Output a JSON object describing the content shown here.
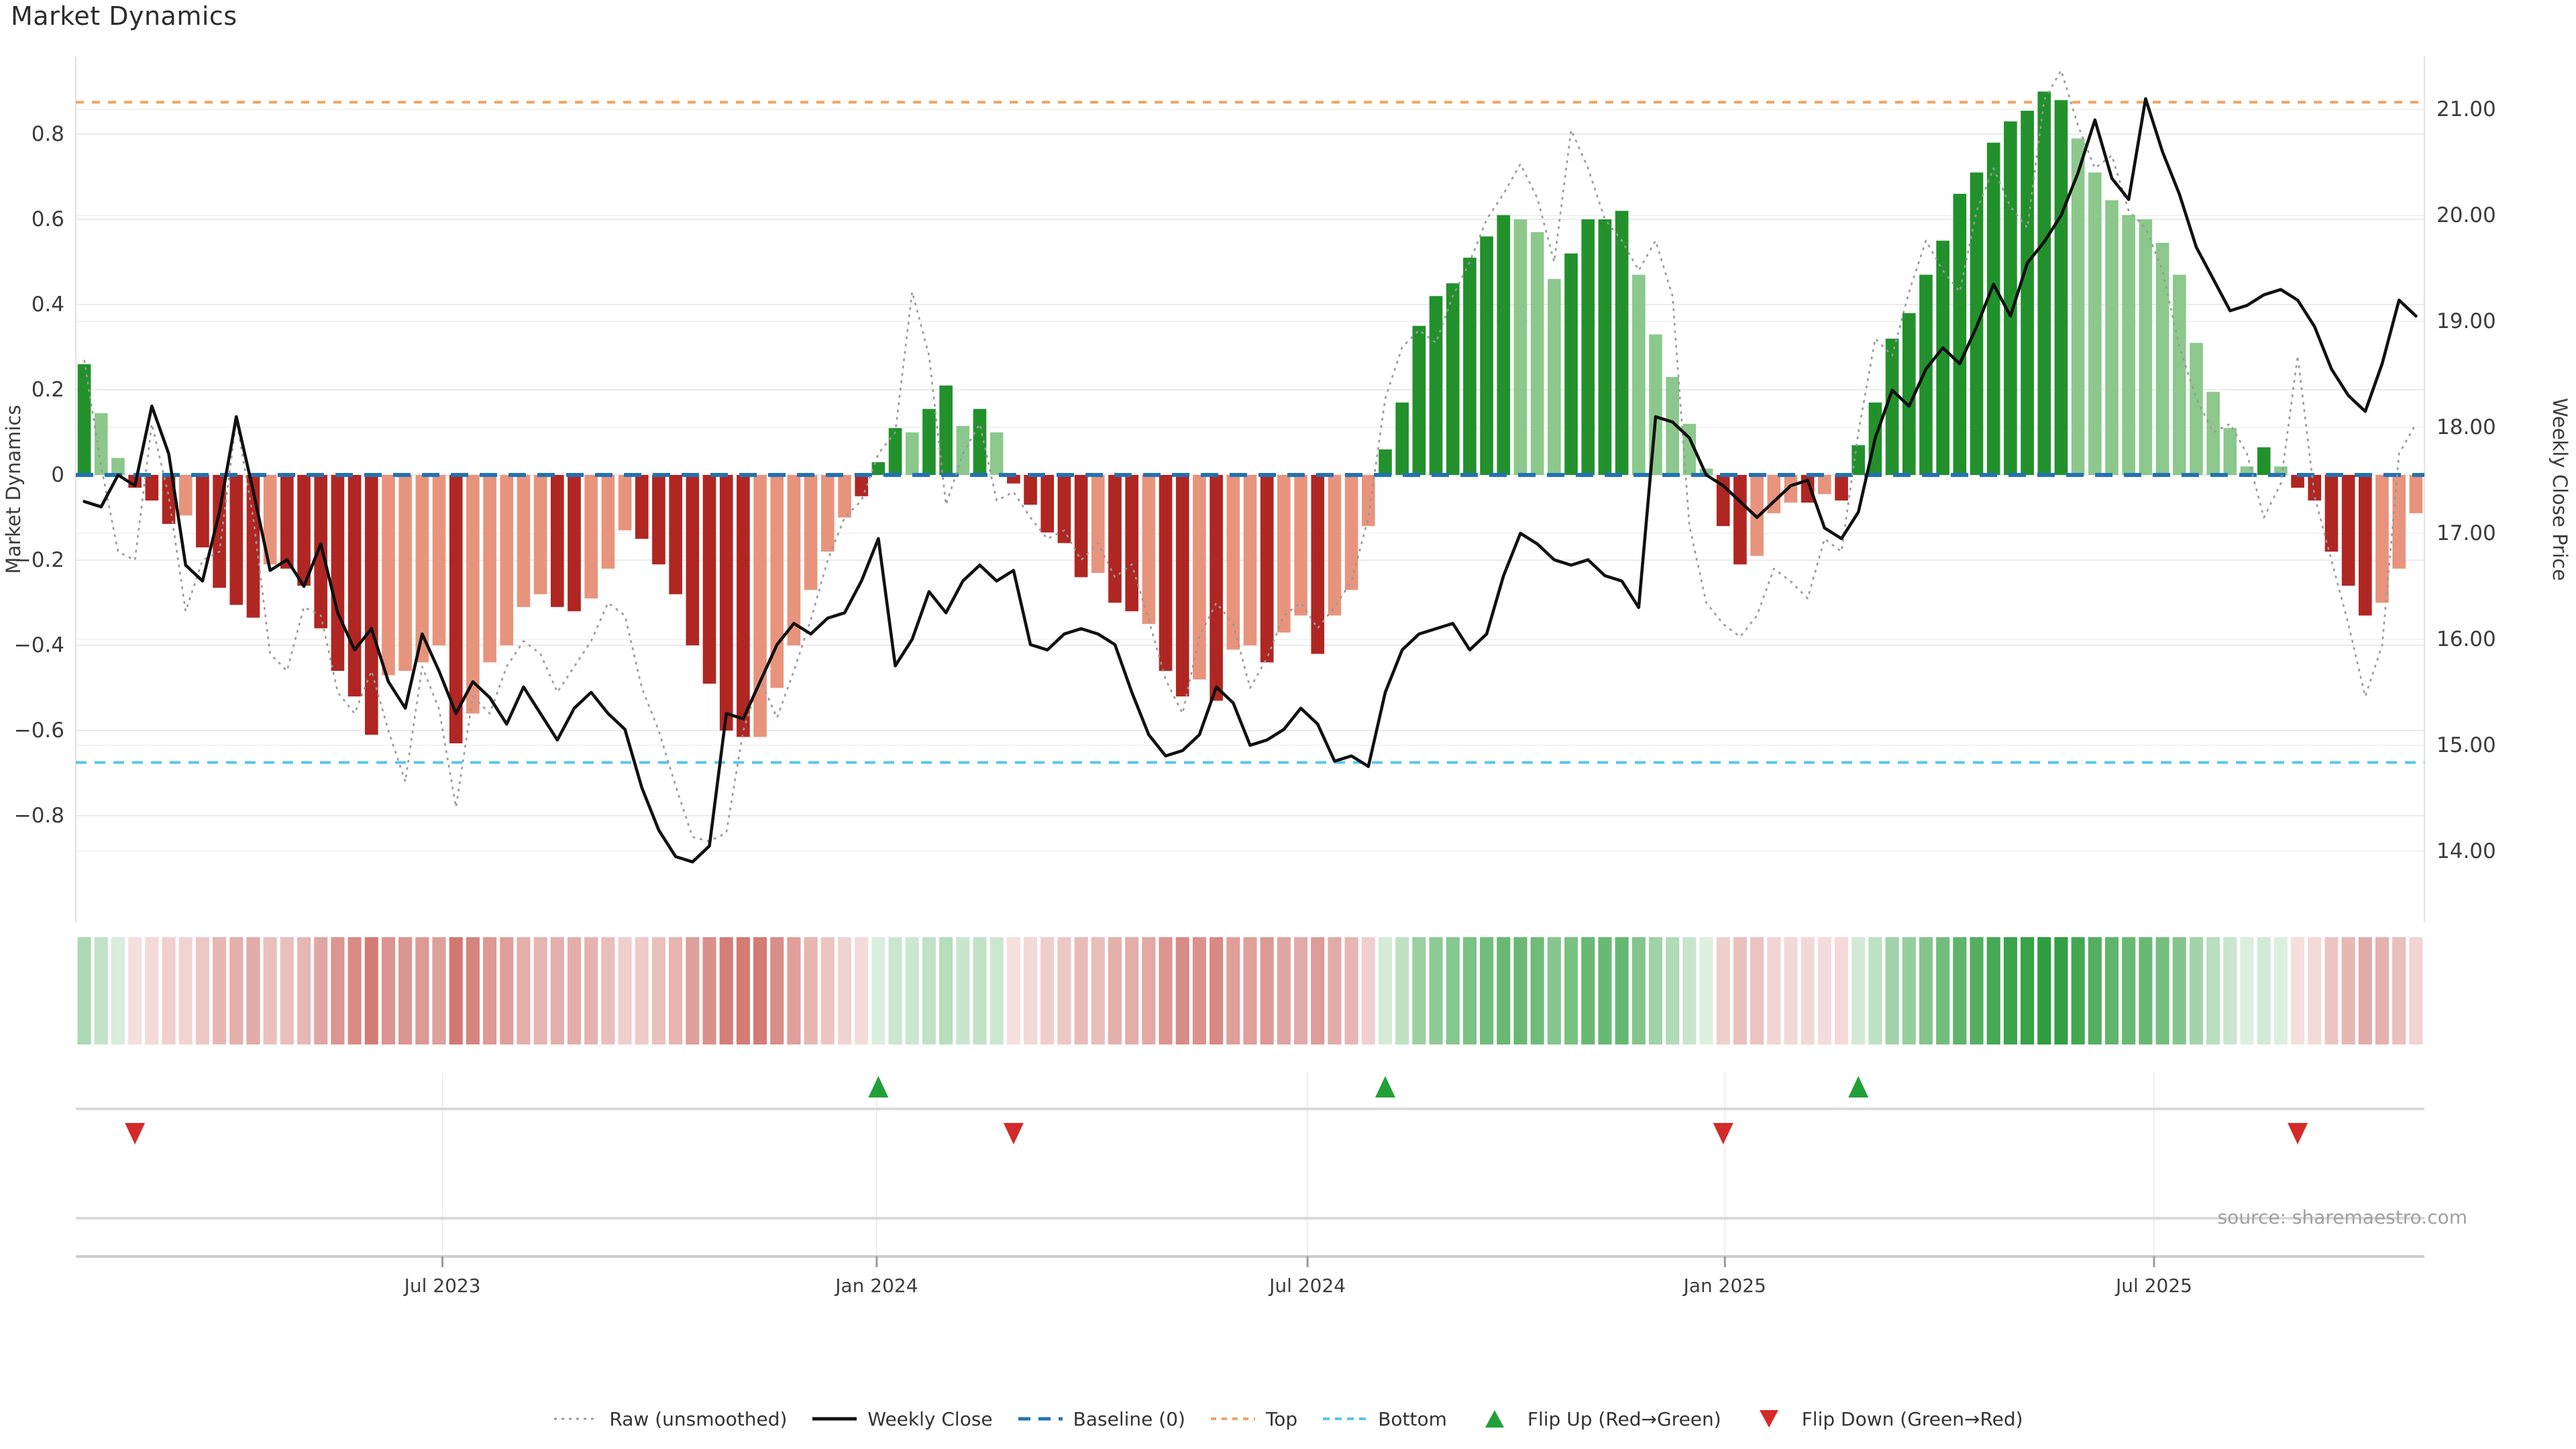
{
  "page": {
    "title": "Market Dynamics"
  },
  "chart_data": {
    "type": "bar",
    "title": "Market Dynamics",
    "source_note": "source: sharemaestro.com",
    "x_axis": {
      "tick_labels": [
        "Jul 2023",
        "Jan 2024",
        "Jul 2024",
        "Jan 2025",
        "Jul 2025"
      ],
      "tick_week_index": [
        21.2,
        46.9,
        72.4,
        97.1,
        122.5
      ],
      "n_weeks": 139
    },
    "left_axis": {
      "label": "Market Dynamics",
      "ticks": [
        0.8,
        0.6,
        0.4,
        0.2,
        0,
        -0.2,
        -0.4,
        -0.6,
        -0.8
      ],
      "tick_labels": [
        "0.8",
        "0.6",
        "0.4",
        "0.2",
        "0",
        "−0.2",
        "−0.4",
        "−0.6",
        "−0.8"
      ],
      "range": [
        -1.05,
        0.98
      ],
      "grid": true
    },
    "right_axis": {
      "label": "Weekly Close Price",
      "ticks": [
        21,
        20,
        19,
        18,
        17,
        16,
        15,
        14
      ],
      "tick_labels": [
        "21.00",
        "20.00",
        "19.00",
        "18.00",
        "17.00",
        "16.00",
        "15.00",
        "14.00"
      ],
      "range": [
        13.33,
        21.5
      ],
      "grid": true
    },
    "reference_lines": {
      "baseline": 0,
      "top": 0.875,
      "bottom": -0.675
    },
    "price_dyn_mapping": {
      "price_at_dyn0": 17.54,
      "price_per_dyn_unit": 4.02
    },
    "series": {
      "dynamics_smoothed": {
        "name": "Market Dynamics (smoothed bars)",
        "values": [
          0.26,
          0.145,
          0.04,
          -0.03,
          -0.06,
          -0.115,
          -0.095,
          -0.17,
          -0.265,
          -0.305,
          -0.335,
          -0.21,
          -0.22,
          -0.26,
          -0.36,
          -0.46,
          -0.52,
          -0.61,
          -0.47,
          -0.46,
          -0.44,
          -0.4,
          -0.63,
          -0.56,
          -0.44,
          -0.4,
          -0.31,
          -0.28,
          -0.31,
          -0.32,
          -0.29,
          -0.22,
          -0.13,
          -0.15,
          -0.21,
          -0.28,
          -0.4,
          -0.49,
          -0.6,
          -0.615,
          -0.615,
          -0.5,
          -0.4,
          -0.27,
          -0.18,
          -0.1,
          -0.05,
          0.03,
          0.11,
          0.1,
          0.155,
          0.21,
          0.115,
          0.155,
          0.1,
          -0.02,
          -0.07,
          -0.135,
          -0.16,
          -0.24,
          -0.23,
          -0.3,
          -0.32,
          -0.35,
          -0.46,
          -0.52,
          -0.48,
          -0.53,
          -0.41,
          -0.4,
          -0.44,
          -0.37,
          -0.33,
          -0.42,
          -0.33,
          -0.27,
          -0.12,
          0.06,
          0.17,
          0.35,
          0.42,
          0.45,
          0.51,
          0.56,
          0.61,
          0.6,
          0.57,
          0.46,
          0.52,
          0.6,
          0.6,
          0.62,
          0.47,
          0.33,
          0.23,
          0.12,
          0.015,
          -0.12,
          -0.21,
          -0.19,
          -0.09,
          -0.065,
          -0.065,
          -0.045,
          -0.06,
          0.07,
          0.17,
          0.32,
          0.38,
          0.47,
          0.55,
          0.66,
          0.71,
          0.78,
          0.83,
          0.855,
          0.9,
          0.88,
          0.79,
          0.71,
          0.645,
          0.61,
          0.6,
          0.545,
          0.47,
          0.31,
          0.195,
          0.11,
          0.02,
          0.065,
          0.02,
          -0.03,
          -0.06,
          -0.18,
          -0.26,
          -0.33,
          -0.3,
          -0.22,
          -0.09
        ],
        "vivid": [
          1,
          0,
          0,
          1,
          1,
          1,
          0,
          1,
          1,
          1,
          1,
          0,
          1,
          1,
          1,
          1,
          1,
          1,
          0,
          0,
          0,
          0,
          1,
          0,
          0,
          0,
          0,
          0,
          1,
          1,
          0,
          0,
          0,
          1,
          1,
          1,
          1,
          1,
          1,
          1,
          0,
          0,
          0,
          0,
          0,
          0,
          1,
          1,
          1,
          0,
          1,
          1,
          0,
          1,
          0,
          1,
          1,
          1,
          1,
          1,
          0,
          1,
          1,
          0,
          1,
          1,
          0,
          1,
          0,
          0,
          1,
          0,
          0,
          1,
          0,
          0,
          0,
          1,
          1,
          1,
          1,
          1,
          1,
          1,
          1,
          0,
          0,
          0,
          1,
          1,
          1,
          1,
          0,
          0,
          0,
          0,
          0,
          1,
          1,
          0,
          0,
          0,
          1,
          0,
          1,
          1,
          1,
          1,
          1,
          1,
          1,
          1,
          1,
          1,
          1,
          1,
          1,
          1,
          0,
          0,
          0,
          0,
          0,
          0,
          0,
          0,
          0,
          0,
          0,
          1,
          0,
          1,
          1,
          1,
          1,
          1,
          0,
          0,
          0
        ]
      },
      "raw_unsmoothed": {
        "name": "Raw (unsmoothed)",
        "values": [
          0.27,
          0.02,
          -0.18,
          -0.2,
          0.12,
          -0.05,
          -0.32,
          -0.2,
          -0.18,
          0.13,
          -0.1,
          -0.42,
          -0.46,
          -0.31,
          -0.33,
          -0.51,
          -0.56,
          -0.46,
          -0.6,
          -0.72,
          -0.45,
          -0.55,
          -0.78,
          -0.52,
          -0.56,
          -0.45,
          -0.39,
          -0.42,
          -0.51,
          -0.45,
          -0.39,
          -0.3,
          -0.33,
          -0.5,
          -0.6,
          -0.73,
          -0.85,
          -0.86,
          -0.84,
          -0.6,
          -0.48,
          -0.57,
          -0.46,
          -0.34,
          -0.2,
          -0.1,
          -0.06,
          0.05,
          0.1,
          0.43,
          0.28,
          -0.07,
          0.05,
          0.12,
          -0.06,
          -0.04,
          -0.1,
          -0.15,
          -0.13,
          -0.2,
          -0.16,
          -0.24,
          -0.21,
          -0.34,
          -0.48,
          -0.56,
          -0.38,
          -0.3,
          -0.35,
          -0.5,
          -0.43,
          -0.33,
          -0.3,
          -0.36,
          -0.31,
          -0.25,
          -0.1,
          0.18,
          0.3,
          0.34,
          0.31,
          0.42,
          0.5,
          0.6,
          0.66,
          0.73,
          0.65,
          0.5,
          0.81,
          0.72,
          0.6,
          0.55,
          0.48,
          0.55,
          0.42,
          -0.12,
          -0.3,
          -0.35,
          -0.38,
          -0.33,
          -0.22,
          -0.25,
          -0.29,
          -0.15,
          -0.18,
          0.1,
          0.32,
          0.28,
          0.43,
          0.55,
          0.48,
          0.43,
          0.62,
          0.72,
          0.63,
          0.58,
          0.88,
          0.95,
          0.82,
          0.72,
          0.75,
          0.62,
          0.58,
          0.48,
          0.3,
          0.18,
          0.1,
          0.12,
          0.05,
          -0.1,
          -0.02,
          0.28,
          -0.05,
          -0.2,
          -0.35,
          -0.52,
          -0.4,
          0.05,
          0.12
        ]
      },
      "weekly_close": {
        "name": "Weekly Close",
        "values": [
          17.3,
          17.25,
          17.55,
          17.45,
          18.2,
          17.75,
          16.7,
          16.55,
          17.2,
          18.1,
          17.4,
          16.65,
          16.75,
          16.5,
          16.9,
          16.25,
          15.9,
          16.1,
          15.6,
          15.35,
          16.05,
          15.7,
          15.3,
          15.6,
          15.45,
          15.2,
          15.55,
          15.3,
          15.05,
          15.35,
          15.5,
          15.3,
          15.15,
          14.6,
          14.2,
          13.95,
          13.9,
          14.05,
          15.3,
          15.25,
          15.6,
          15.95,
          16.15,
          16.05,
          16.2,
          16.25,
          16.55,
          16.95,
          15.75,
          16.0,
          16.45,
          16.25,
          16.55,
          16.7,
          16.55,
          16.65,
          15.95,
          15.9,
          16.05,
          16.1,
          16.05,
          15.95,
          15.5,
          15.1,
          14.9,
          14.95,
          15.1,
          15.55,
          15.4,
          15.0,
          15.05,
          15.15,
          15.35,
          15.2,
          14.85,
          14.9,
          14.8,
          15.5,
          15.9,
          16.05,
          16.1,
          16.15,
          15.9,
          16.05,
          16.6,
          17.0,
          16.9,
          16.75,
          16.7,
          16.75,
          16.6,
          16.55,
          16.3,
          18.1,
          18.05,
          17.9,
          17.55,
          17.45,
          17.3,
          17.15,
          17.3,
          17.45,
          17.5,
          17.05,
          16.95,
          17.2,
          17.9,
          18.35,
          18.2,
          18.55,
          18.75,
          18.6,
          18.95,
          19.35,
          19.05,
          19.55,
          19.75,
          20.0,
          20.4,
          20.9,
          20.35,
          20.15,
          21.1,
          20.6,
          20.2,
          19.7,
          19.4,
          19.1,
          19.15,
          19.25,
          19.3,
          19.2,
          18.95,
          18.55,
          18.3,
          18.15,
          18.6,
          19.2,
          19.05
        ]
      }
    },
    "heatmap_strip": {
      "derived_from": "dynamics_smoothed",
      "normalization_max": 0.9
    },
    "flip_up_week_indices": [
      47,
      77,
      105
    ],
    "flip_down_week_indices": [
      3,
      55,
      97,
      131
    ],
    "legend": [
      {
        "label": "Raw (unsmoothed)",
        "swatch": "dotted-gray"
      },
      {
        "label": "Weekly Close",
        "swatch": "solid-black"
      },
      {
        "label": "Baseline (0)",
        "swatch": "dashed-blue"
      },
      {
        "label": "Top",
        "swatch": "dotted-orange"
      },
      {
        "label": "Bottom",
        "swatch": "dotted-cyan"
      },
      {
        "label": "Flip Up (Red→Green)",
        "swatch": "triangle-up"
      },
      {
        "label": "Flip Down (Green→Red)",
        "swatch": "triangle-down"
      }
    ],
    "colors": {
      "bar_green_vivid": "#22912c",
      "bar_green_soft": "#8cc88c",
      "bar_red_vivid": "#b02622",
      "bar_red_soft": "#e8947d",
      "weekly_close_line": "#111111",
      "raw_line": "#999999",
      "baseline": "#2272b4",
      "top_line": "#f0a35f",
      "bottom_line": "#56c6ec",
      "flip_up_marker": "#21a038",
      "flip_down_marker": "#d42a2a",
      "grid": "#ebebeb",
      "band_line": "#d9d9d9",
      "axis_text": "#3c3c3c",
      "heat_green_base": "#2e9e3e",
      "heat_red_base": "#c34a42"
    }
  }
}
